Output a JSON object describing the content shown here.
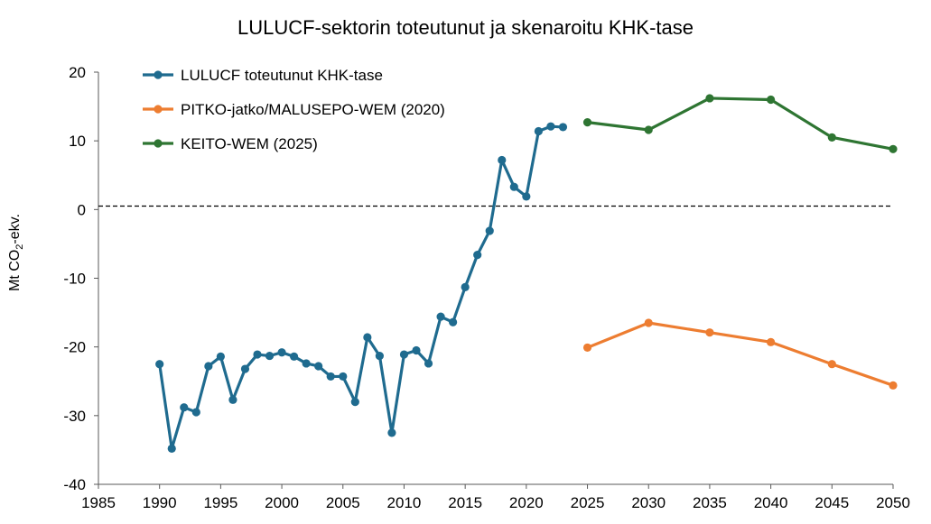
{
  "chart_data": {
    "type": "line",
    "title": "LULUCF-sektorin toteutunut ja skenaroitu KHK-tase",
    "xlabel": "",
    "ylabel_main": "Mt CO",
    "ylabel_sub": "2",
    "ylabel_tail": "-ekv.",
    "xlim": [
      1985,
      2050
    ],
    "ylim": [
      -40,
      20
    ],
    "x_ticks": [
      "1985",
      "1990",
      "1995",
      "2000",
      "2005",
      "2010",
      "2015",
      "2020",
      "2025",
      "2030",
      "2035",
      "2040",
      "2045",
      "2050"
    ],
    "y_ticks": [
      "20",
      "10",
      "0",
      "-10",
      "-20",
      "-30",
      "-40"
    ],
    "zero_line": {
      "value": 0.5,
      "style": "dashed"
    },
    "grid": false,
    "legend_position": "top-left",
    "series": [
      {
        "name": "LULUCF toteutunut KHK-tase",
        "color": "#1f6b8f",
        "x": [
          1990,
          1991,
          1992,
          1993,
          1994,
          1995,
          1996,
          1997,
          1998,
          1999,
          2000,
          2001,
          2002,
          2003,
          2004,
          2005,
          2006,
          2007,
          2008,
          2009,
          2010,
          2011,
          2012,
          2013,
          2014,
          2015,
          2016,
          2017,
          2018,
          2019,
          2020,
          2021,
          2022,
          2023
        ],
        "y": [
          -22.5,
          -34.8,
          -28.8,
          -29.5,
          -22.8,
          -21.4,
          -27.7,
          -23.2,
          -21.1,
          -21.3,
          -20.8,
          -21.4,
          -22.4,
          -22.8,
          -24.3,
          -24.3,
          -28.0,
          -18.6,
          -21.3,
          -32.5,
          -21.1,
          -20.5,
          -22.4,
          -15.6,
          -16.4,
          -11.3,
          -6.6,
          -3.1,
          7.2,
          3.3,
          1.9,
          11.4,
          12.1,
          12.0
        ]
      },
      {
        "name": "PITKO-jatko/MALUSEPO-WEM (2020)",
        "color": "#ed7d31",
        "x": [
          2025,
          2030,
          2035,
          2040,
          2045,
          2050
        ],
        "y": [
          -20.1,
          -16.5,
          -17.9,
          -19.3,
          -22.5,
          -25.6
        ]
      },
      {
        "name": "KEITO-WEM (2025)",
        "color": "#2e7532",
        "x": [
          2025,
          2030,
          2035,
          2040,
          2045,
          2050
        ],
        "y": [
          12.7,
          11.6,
          16.2,
          16.0,
          10.5,
          8.8
        ]
      }
    ]
  }
}
